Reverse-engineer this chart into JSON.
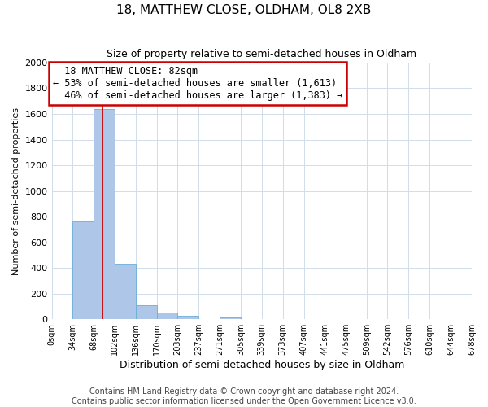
{
  "title": "18, MATTHEW CLOSE, OLDHAM, OL8 2XB",
  "subtitle": "Size of property relative to semi-detached houses in Oldham",
  "xlabel": "Distribution of semi-detached houses by size in Oldham",
  "ylabel": "Number of semi-detached properties",
  "bar_color": "#aec6e8",
  "bar_edge_color": "#6aaed6",
  "grid_color": "#d0dce8",
  "background_color": "#ffffff",
  "annotation_box_color": "#cc0000",
  "annotation_line_color": "#cc0000",
  "bins": [
    0,
    34,
    68,
    102,
    136,
    170,
    203,
    237,
    271,
    305,
    339,
    373,
    407,
    441,
    475,
    509,
    542,
    576,
    610,
    644,
    678
  ],
  "bin_labels": [
    "0sqm",
    "34sqm",
    "68sqm",
    "102sqm",
    "136sqm",
    "170sqm",
    "203sqm",
    "237sqm",
    "271sqm",
    "305sqm",
    "339sqm",
    "373sqm",
    "407sqm",
    "441sqm",
    "475sqm",
    "509sqm",
    "542sqm",
    "576sqm",
    "610sqm",
    "644sqm",
    "678sqm"
  ],
  "bar_heights": [
    0,
    760,
    1635,
    435,
    110,
    50,
    25,
    0,
    15,
    0,
    0,
    0,
    0,
    0,
    0,
    0,
    0,
    0,
    0,
    0
  ],
  "ylim": [
    0,
    2000
  ],
  "yticks": [
    0,
    200,
    400,
    600,
    800,
    1000,
    1200,
    1400,
    1600,
    1800,
    2000
  ],
  "property_size": 82,
  "property_label": "18 MATTHEW CLOSE: 82sqm",
  "pct_smaller": 53,
  "count_smaller": 1613,
  "pct_larger": 46,
  "count_larger": 1383,
  "annotation_fontsize": 8.5,
  "title_fontsize": 11,
  "subtitle_fontsize": 9,
  "footer_text": "Contains HM Land Registry data © Crown copyright and database right 2024.\nContains public sector information licensed under the Open Government Licence v3.0.",
  "footer_fontsize": 7
}
